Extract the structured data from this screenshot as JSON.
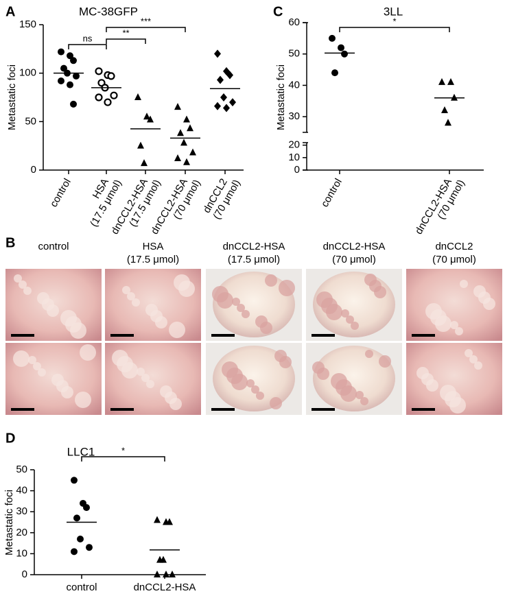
{
  "chart_data": [
    {
      "type": "dot",
      "panel_label": "A",
      "title": "MC-38GFP",
      "y_label": "Metastatic foci",
      "categories": [
        [
          "control"
        ],
        [
          "HSA",
          "(17.5 μmol)"
        ],
        [
          "dnCCL2-HSA",
          "(17.5 μmol)"
        ],
        [
          "dnCCL2-HSA",
          "(70 μmol)"
        ],
        [
          "dnCCL2",
          "(70 μmol)"
        ]
      ],
      "markers": [
        "circle",
        "open-circle",
        "triangle",
        "triangle",
        "diamond"
      ],
      "color": "#000000",
      "values": [
        [
          122,
          118,
          113,
          105,
          100,
          97,
          92,
          88,
          68
        ],
        [
          102,
          98,
          97,
          90,
          85,
          77,
          75,
          70
        ],
        [
          75,
          55,
          52,
          25,
          7
        ],
        [
          65,
          52,
          43,
          38,
          28,
          18,
          12,
          8
        ],
        [
          120,
          102,
          98,
          93,
          75,
          70,
          66,
          64
        ]
      ],
      "means": [
        100,
        85,
        42.5,
        33,
        84
      ],
      "ylim": [
        0,
        150
      ],
      "yticks": [
        0,
        50,
        100,
        150
      ],
      "comparisons": [
        {
          "from": 0,
          "to": 1,
          "label": "ns"
        },
        {
          "from": 1,
          "to": 2,
          "label": "**"
        },
        {
          "from": 1,
          "to": 3,
          "label": "***"
        }
      ]
    },
    {
      "type": "dot",
      "panel_label": "C",
      "title": "3LL",
      "y_label": "Metastatic foci",
      "categories": [
        [
          "control"
        ],
        [
          "dnCCL2-HSA",
          "(70 μmol)"
        ]
      ],
      "markers": [
        "circle",
        "triangle"
      ],
      "color": "#000000",
      "values": [
        [
          55,
          52,
          50,
          44
        ],
        [
          41,
          41,
          36,
          32,
          28
        ]
      ],
      "means": [
        50.3,
        36
      ],
      "ylim": [
        0,
        60
      ],
      "yticks": [
        0,
        10,
        20,
        30,
        40,
        50,
        60
      ],
      "axis_break": [
        22,
        25
      ],
      "comparisons": [
        {
          "from": 0,
          "to": 1,
          "label": "*"
        }
      ]
    },
    {
      "type": "dot",
      "panel_label": "D",
      "title": "LLC1",
      "y_label": "Metastatic foci",
      "categories": [
        [
          "control"
        ],
        [
          "dnCCL2-HSA"
        ]
      ],
      "markers": [
        "circle",
        "triangle"
      ],
      "color": "#000000",
      "values": [
        [
          45,
          34,
          32,
          27,
          17,
          13,
          11
        ],
        [
          26,
          25,
          25,
          7,
          7,
          0,
          0,
          0
        ]
      ],
      "means": [
        25,
        11.8
      ],
      "ylim": [
        0,
        50
      ],
      "yticks": [
        0,
        10,
        20,
        30,
        40,
        50
      ],
      "comparisons": [
        {
          "from": 0,
          "to": 1,
          "label": "*"
        }
      ]
    }
  ],
  "photo_panel": {
    "panel_label": "B",
    "columns": [
      [
        "control"
      ],
      [
        "HSA",
        "(17.5 μmol)"
      ],
      [
        "dnCCL2-HSA",
        "(17.5 μmol)"
      ],
      [
        "dnCCL2-HSA",
        "(70 μmol)"
      ],
      [
        "dnCCL2",
        "(70 μmol)"
      ]
    ]
  }
}
